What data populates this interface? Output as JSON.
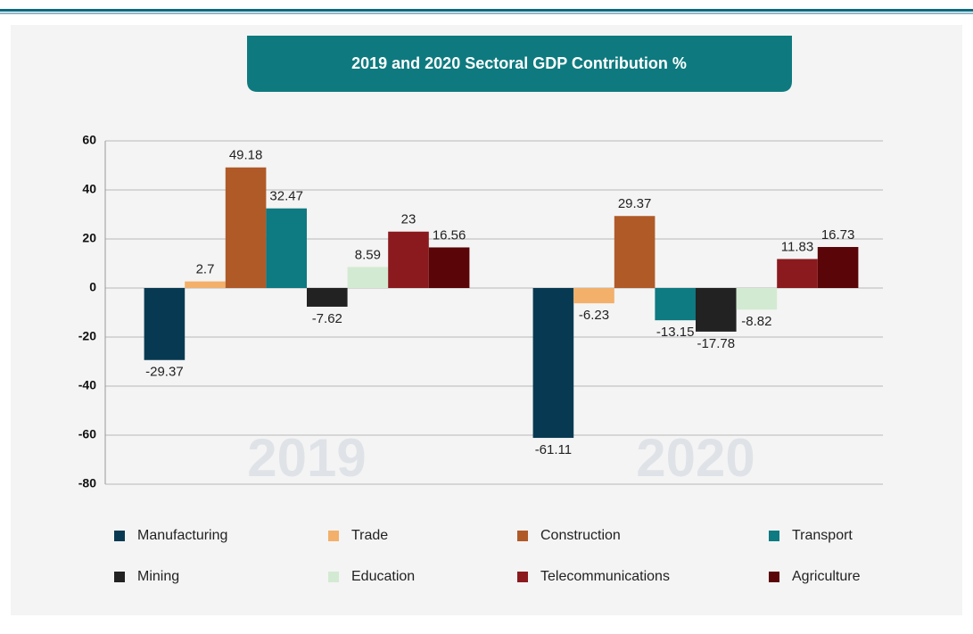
{
  "chart_data": {
    "type": "bar",
    "title": "2019 and 2020 Sectoral GDP Contribution %",
    "categories": [
      "2019",
      "2020"
    ],
    "series": [
      {
        "name": "Manufacturing",
        "color": "#073a52",
        "values": [
          -29.37,
          -61.11
        ]
      },
      {
        "name": "Trade",
        "color": "#f2b06b",
        "values": [
          2.7,
          -6.23
        ]
      },
      {
        "name": "Construction",
        "color": "#b05a28",
        "values": [
          49.18,
          29.37
        ]
      },
      {
        "name": "Transport",
        "color": "#0e7a82",
        "values": [
          32.47,
          -13.15
        ]
      },
      {
        "name": "Mining",
        "color": "#222222",
        "values": [
          -7.62,
          -17.78
        ]
      },
      {
        "name": "Education",
        "color": "#d3ead2",
        "values": [
          8.59,
          -8.82
        ]
      },
      {
        "name": "Telecommunications",
        "color": "#8b1a1e",
        "values": [
          23,
          11.83
        ]
      },
      {
        "name": "Agriculture",
        "color": "#5a0508",
        "values": [
          16.56,
          16.73
        ]
      }
    ],
    "ylim": [
      -80,
      60
    ],
    "yticks": [
      -80,
      -60,
      -40,
      -20,
      0,
      20,
      40,
      60
    ],
    "grid": true
  }
}
